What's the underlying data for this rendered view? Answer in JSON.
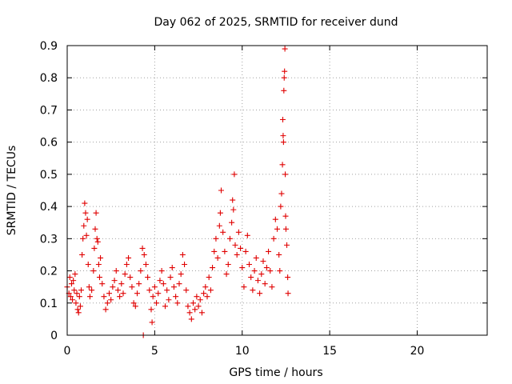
{
  "chart_data": {
    "type": "scatter",
    "title": "Day 062 of 2025, SRMTID for receiver dund",
    "xlabel": "GPS time / hours",
    "ylabel": "SRMTID / TECUs",
    "xlim": [
      0,
      24
    ],
    "ylim": [
      0,
      0.9
    ],
    "xticks": [
      0,
      5,
      10,
      15,
      20
    ],
    "yticks": [
      0,
      0.1,
      0.2,
      0.3,
      0.4,
      0.5,
      0.6,
      0.7,
      0.8,
      0.9
    ],
    "xtick_labels": [
      "0",
      "5",
      "10",
      "15",
      "20"
    ],
    "ytick_labels": [
      "0",
      "0.1",
      "0.2",
      "0.3",
      "0.4",
      "0.5",
      "0.6",
      "0.7",
      "0.8",
      "0.9"
    ],
    "grid": true,
    "marker": "plus",
    "color": "#e00000",
    "series": [
      {
        "name": "SRMTID",
        "points": [
          [
            0.0,
            0.15
          ],
          [
            0.1,
            0.13
          ],
          [
            0.15,
            0.18
          ],
          [
            0.2,
            0.12
          ],
          [
            0.25,
            0.16
          ],
          [
            0.3,
            0.11
          ],
          [
            0.35,
            0.17
          ],
          [
            0.4,
            0.14
          ],
          [
            0.45,
            0.19
          ],
          [
            0.5,
            0.1
          ],
          [
            0.55,
            0.13
          ],
          [
            0.6,
            0.08
          ],
          [
            0.65,
            0.07
          ],
          [
            0.7,
            0.12
          ],
          [
            0.75,
            0.09
          ],
          [
            0.8,
            0.14
          ],
          [
            0.85,
            0.25
          ],
          [
            0.9,
            0.3
          ],
          [
            0.95,
            0.34
          ],
          [
            1.0,
            0.41
          ],
          [
            1.05,
            0.38
          ],
          [
            1.1,
            0.31
          ],
          [
            1.15,
            0.36
          ],
          [
            1.2,
            0.22
          ],
          [
            1.25,
            0.15
          ],
          [
            1.3,
            0.12
          ],
          [
            1.4,
            0.14
          ],
          [
            1.5,
            0.2
          ],
          [
            1.55,
            0.27
          ],
          [
            1.6,
            0.33
          ],
          [
            1.65,
            0.38
          ],
          [
            1.7,
            0.3
          ],
          [
            1.75,
            0.29
          ],
          [
            1.8,
            0.22
          ],
          [
            1.85,
            0.18
          ],
          [
            1.9,
            0.24
          ],
          [
            2.0,
            0.16
          ],
          [
            2.1,
            0.12
          ],
          [
            2.2,
            0.08
          ],
          [
            2.3,
            0.1
          ],
          [
            2.4,
            0.13
          ],
          [
            2.5,
            0.11
          ],
          [
            2.6,
            0.15
          ],
          [
            2.7,
            0.17
          ],
          [
            2.8,
            0.2
          ],
          [
            2.9,
            0.14
          ],
          [
            3.0,
            0.12
          ],
          [
            3.1,
            0.16
          ],
          [
            3.2,
            0.13
          ],
          [
            3.3,
            0.19
          ],
          [
            3.4,
            0.22
          ],
          [
            3.5,
            0.24
          ],
          [
            3.6,
            0.18
          ],
          [
            3.7,
            0.15
          ],
          [
            3.8,
            0.1
          ],
          [
            3.9,
            0.09
          ],
          [
            4.0,
            0.13
          ],
          [
            4.1,
            0.16
          ],
          [
            4.2,
            0.2
          ],
          [
            4.3,
            0.27
          ],
          [
            4.35,
            0.0
          ],
          [
            4.4,
            0.25
          ],
          [
            4.5,
            0.22
          ],
          [
            4.6,
            0.18
          ],
          [
            4.7,
            0.14
          ],
          [
            4.8,
            0.08
          ],
          [
            4.85,
            0.04
          ],
          [
            4.9,
            0.12
          ],
          [
            5.0,
            0.15
          ],
          [
            5.1,
            0.1
          ],
          [
            5.2,
            0.13
          ],
          [
            5.3,
            0.17
          ],
          [
            5.4,
            0.2
          ],
          [
            5.5,
            0.16
          ],
          [
            5.6,
            0.09
          ],
          [
            5.7,
            0.14
          ],
          [
            5.8,
            0.11
          ],
          [
            5.9,
            0.18
          ],
          [
            6.0,
            0.21
          ],
          [
            6.1,
            0.15
          ],
          [
            6.2,
            0.12
          ],
          [
            6.3,
            0.1
          ],
          [
            6.4,
            0.16
          ],
          [
            6.5,
            0.19
          ],
          [
            6.6,
            0.25
          ],
          [
            6.7,
            0.22
          ],
          [
            6.8,
            0.14
          ],
          [
            6.9,
            0.09
          ],
          [
            7.0,
            0.07
          ],
          [
            7.1,
            0.05
          ],
          [
            7.2,
            0.1
          ],
          [
            7.3,
            0.08
          ],
          [
            7.4,
            0.12
          ],
          [
            7.5,
            0.09
          ],
          [
            7.6,
            0.11
          ],
          [
            7.7,
            0.07
          ],
          [
            7.8,
            0.13
          ],
          [
            7.9,
            0.15
          ],
          [
            8.0,
            0.12
          ],
          [
            8.1,
            0.18
          ],
          [
            8.2,
            0.14
          ],
          [
            8.3,
            0.21
          ],
          [
            8.4,
            0.26
          ],
          [
            8.5,
            0.3
          ],
          [
            8.6,
            0.24
          ],
          [
            8.7,
            0.34
          ],
          [
            8.75,
            0.38
          ],
          [
            8.8,
            0.45
          ],
          [
            8.9,
            0.32
          ],
          [
            9.0,
            0.26
          ],
          [
            9.1,
            0.19
          ],
          [
            9.2,
            0.22
          ],
          [
            9.3,
            0.3
          ],
          [
            9.4,
            0.35
          ],
          [
            9.45,
            0.42
          ],
          [
            9.5,
            0.39
          ],
          [
            9.55,
            0.5
          ],
          [
            9.6,
            0.28
          ],
          [
            9.7,
            0.25
          ],
          [
            9.8,
            0.32
          ],
          [
            9.9,
            0.27
          ],
          [
            10.0,
            0.21
          ],
          [
            10.1,
            0.15
          ],
          [
            10.2,
            0.26
          ],
          [
            10.3,
            0.31
          ],
          [
            10.4,
            0.22
          ],
          [
            10.5,
            0.18
          ],
          [
            10.6,
            0.14
          ],
          [
            10.7,
            0.2
          ],
          [
            10.8,
            0.24
          ],
          [
            10.9,
            0.17
          ],
          [
            11.0,
            0.13
          ],
          [
            11.1,
            0.19
          ],
          [
            11.2,
            0.23
          ],
          [
            11.3,
            0.16
          ],
          [
            11.4,
            0.21
          ],
          [
            11.5,
            0.26
          ],
          [
            11.6,
            0.2
          ],
          [
            11.7,
            0.15
          ],
          [
            11.8,
            0.3
          ],
          [
            11.9,
            0.36
          ],
          [
            12.0,
            0.33
          ],
          [
            12.1,
            0.25
          ],
          [
            12.15,
            0.2
          ],
          [
            12.2,
            0.4
          ],
          [
            12.25,
            0.44
          ],
          [
            12.3,
            0.53
          ],
          [
            12.32,
            0.67
          ],
          [
            12.34,
            0.62
          ],
          [
            12.36,
            0.6
          ],
          [
            12.38,
            0.76
          ],
          [
            12.4,
            0.8
          ],
          [
            12.42,
            0.82
          ],
          [
            12.44,
            0.89
          ],
          [
            12.46,
            0.5
          ],
          [
            12.48,
            0.37
          ],
          [
            12.5,
            0.33
          ],
          [
            12.55,
            0.28
          ],
          [
            12.6,
            0.18
          ],
          [
            12.62,
            0.13
          ]
        ]
      }
    ]
  }
}
